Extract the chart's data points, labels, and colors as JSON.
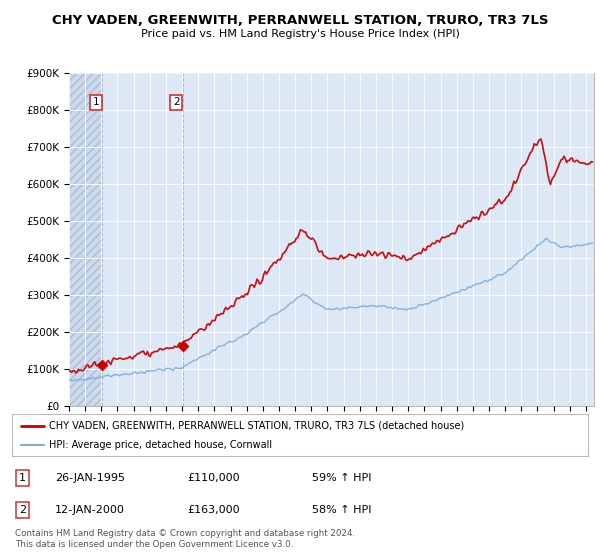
{
  "title": "CHY VADEN, GREENWITH, PERRANWELL STATION, TRURO, TR3 7LS",
  "subtitle": "Price paid vs. HM Land Registry's House Price Index (HPI)",
  "ylim": [
    0,
    900000
  ],
  "yticks": [
    0,
    100000,
    200000,
    300000,
    400000,
    500000,
    600000,
    700000,
    800000,
    900000
  ],
  "ytick_labels": [
    "£0",
    "£100K",
    "£200K",
    "£300K",
    "£400K",
    "£500K",
    "£600K",
    "£700K",
    "£800K",
    "£900K"
  ],
  "price_paid_color": "#cc0000",
  "hpi_color": "#7aacdc",
  "background_color": "#ffffff",
  "plot_bg_color": "#dce8f5",
  "transactions": [
    {
      "date_num": 1995.07,
      "price": 110000,
      "label": "1"
    },
    {
      "date_num": 2000.04,
      "price": 163000,
      "label": "2"
    }
  ],
  "transaction_table": [
    {
      "num": "1",
      "date": "26-JAN-1995",
      "price": "£110,000",
      "pct": "59% ↑ HPI"
    },
    {
      "num": "2",
      "date": "12-JAN-2000",
      "price": "£163,000",
      "pct": "58% ↑ HPI"
    }
  ],
  "legend_line1": "CHY VADEN, GREENWITH, PERRANWELL STATION, TRURO, TR3 7LS (detached house)",
  "legend_line2": "HPI: Average price, detached house, Cornwall",
  "footer": "Contains HM Land Registry data © Crown copyright and database right 2024.\nThis data is licensed under the Open Government Licence v3.0.",
  "xmin": 1993.0,
  "xmax": 2025.5,
  "hatch_end": 1995.07,
  "second_hatch_end": 2000.04
}
